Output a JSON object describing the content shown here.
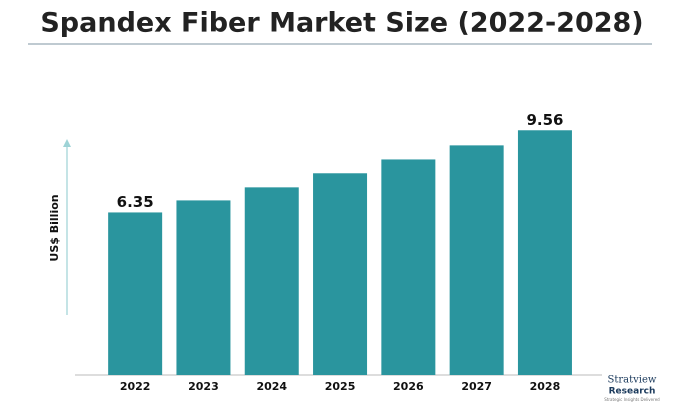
{
  "chart_data": {
    "type": "bar",
    "title": "Spandex Fiber Market Size (2022-2028)",
    "y_label": "US$ Billion",
    "categories": [
      "2022",
      "2023",
      "2024",
      "2025",
      "2026",
      "2027",
      "2028"
    ],
    "values": [
      6.35,
      6.82,
      7.33,
      7.88,
      8.42,
      8.97,
      9.56
    ],
    "value_labels": [
      "6.35",
      null,
      null,
      null,
      null,
      null,
      "9.56"
    ],
    "color": "#2a959e",
    "ylim": [
      0,
      10
    ],
    "logo": {
      "name": "Stratview",
      "sub": "Research",
      "tagline": "Strategic Insights Delivered"
    }
  }
}
